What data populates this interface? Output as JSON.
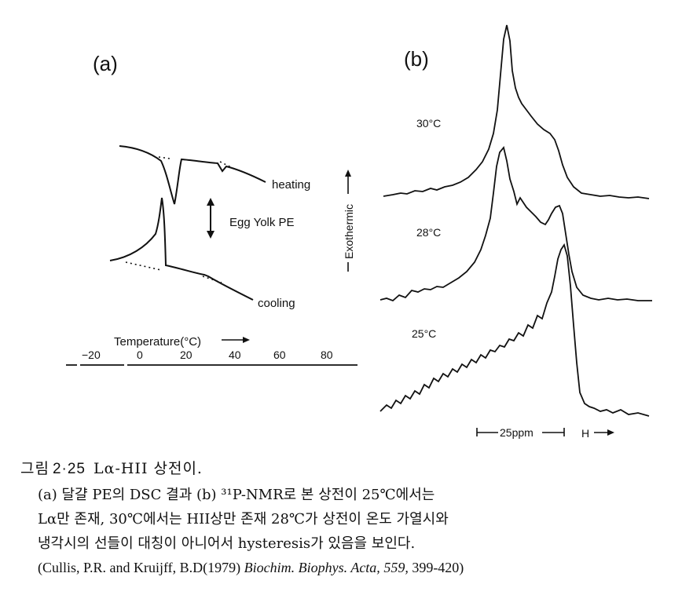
{
  "panel_a": {
    "label": "(a)",
    "heating_label": "heating",
    "cooling_label": "cooling",
    "sample_label": "Egg Yolk PE",
    "exothermic_label": "Exothermic",
    "axis_title": "Temperature(°C)",
    "ticks": [
      "−20",
      "0",
      "20",
      "40",
      "60",
      "80"
    ]
  },
  "panel_b": {
    "label": "(b)",
    "traces": [
      {
        "label": "30°C"
      },
      {
        "label": "28°C"
      },
      {
        "label": "25°C"
      }
    ],
    "scale_label": "25ppm",
    "field_label": "H"
  },
  "caption": {
    "figure_label": "그림",
    "figure_number": "2·25",
    "title": "Lα-HII 상전이.",
    "line1": "(a) 달걀 PE의 DSC 결과 (b) ³¹P-NMR로 본 상전이 25℃에서는",
    "line2": "Lα만 존재, 30℃에서는 HII상만 존재 28℃가 상전이 온도 가열시와",
    "line3": "냉각시의 선들이 대칭이 아니어서 hysteresis가 있음을 보인다.",
    "citation_authors": "(Cullis, P.R. and Kruijff, B.D(1979)",
    "citation_journal": "Biochim. Biophys. Acta,",
    "citation_volume": "559,",
    "citation_pages": "399-420)"
  }
}
